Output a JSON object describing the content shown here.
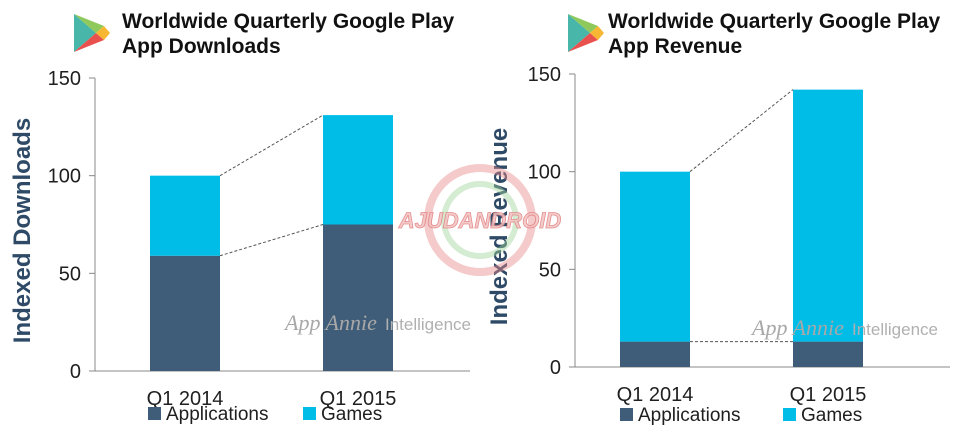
{
  "legend": {
    "applications_label": "Applications",
    "games_label": "Games"
  },
  "colors": {
    "applications": "#3f5d78",
    "games": "#00bde8",
    "axis": "#888888",
    "text": "#1f1f1f",
    "ylabel": "#2e4a66"
  },
  "watermarks": {
    "app_annie_brand": "App Annie",
    "app_annie_suffix": "Intelligence",
    "center_logo": "AJUDANDROID"
  },
  "charts": [
    {
      "title": "Worldwide Quarterly Google Play\nApp Downloads",
      "chart_data": {
        "type": "bar",
        "stacked": true,
        "categories": [
          "Q1 2014",
          "Q1 2015"
        ],
        "series": [
          {
            "name": "Applications",
            "values": [
              59,
              75
            ]
          },
          {
            "name": "Games",
            "values": [
              41,
              56
            ]
          }
        ],
        "ylabel": "Indexed Downloads",
        "ylim": [
          0,
          150
        ],
        "yticks": [
          0,
          50,
          100,
          150
        ],
        "legend": "bottom"
      }
    },
    {
      "title": "Worldwide Quarterly Google Play\nApp Revenue",
      "chart_data": {
        "type": "bar",
        "stacked": true,
        "categories": [
          "Q1 2014",
          "Q1 2015"
        ],
        "series": [
          {
            "name": "Applications",
            "values": [
              13,
              13
            ]
          },
          {
            "name": "Games",
            "values": [
              87,
              129
            ]
          }
        ],
        "ylabel": "Indexed Revenue",
        "ylim": [
          0,
          150
        ],
        "yticks": [
          0,
          50,
          100,
          150
        ],
        "legend": "bottom"
      }
    }
  ]
}
